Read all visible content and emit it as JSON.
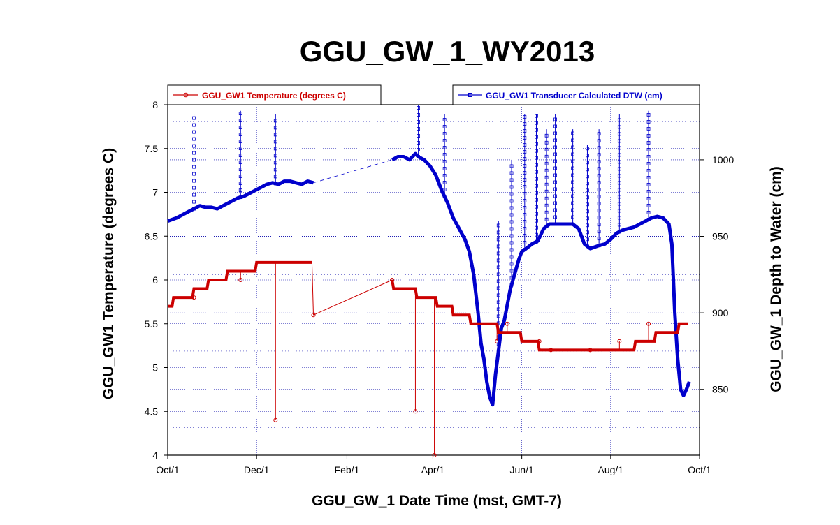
{
  "chart_data": {
    "type": "line",
    "title": "GGU_GW_1_WY2013",
    "xlabel": "GGU_GW_1 Date Time (mst, GMT-7)",
    "ylabel_left": "GGU_GW1 Temperature (degrees C)",
    "ylabel_right": "GGU_GW_1 Depth to Water (cm)",
    "x_ticks": [
      "Oct/1",
      "Dec/1",
      "Feb/1",
      "Apr/1",
      "Jun/1",
      "Aug/1",
      "Oct/1"
    ],
    "x_tick_days": [
      0,
      61,
      123,
      182,
      243,
      304,
      365
    ],
    "y_left_ticks": [
      4,
      4.5,
      5,
      5.5,
      6,
      6.5,
      7,
      7.5,
      8
    ],
    "ylim_left": [
      4,
      8
    ],
    "y_right_ticks": [
      850,
      900,
      950,
      1000
    ],
    "ylim_right": [
      807,
      1036
    ],
    "grid": true,
    "legend": [
      {
        "name": "GGU_GW1 Temperature (degrees C)",
        "position": "top-left",
        "color": "#cc0000",
        "marker": "circle"
      },
      {
        "name": "GGU_GW1 Transducer Calculated DTW (cm)",
        "position": "top-right",
        "color": "#0000cc",
        "marker": "square"
      }
    ],
    "series": [
      {
        "name": "GGU_GW1 Temperature (degrees C)",
        "axis": "left",
        "color": "#cc0000",
        "style": "step",
        "x": [
          0,
          3,
          4,
          17,
          18,
          27,
          28,
          40,
          41,
          60,
          61,
          99,
          100,
          154,
          155,
          170,
          171,
          184,
          185,
          195,
          196,
          207,
          208,
          226,
          227,
          242,
          243,
          254,
          255,
          320,
          321,
          334,
          335,
          350,
          351,
          357
        ],
        "y": [
          5.7,
          5.7,
          5.8,
          5.8,
          5.9,
          5.9,
          6.0,
          6.0,
          6.1,
          6.1,
          6.2,
          6.2,
          5.6,
          6.0,
          5.9,
          5.9,
          5.8,
          5.8,
          5.7,
          5.7,
          5.6,
          5.6,
          5.5,
          5.5,
          5.4,
          5.4,
          5.3,
          5.3,
          5.2,
          5.2,
          5.3,
          5.3,
          5.4,
          5.4,
          5.5,
          5.5
        ]
      },
      {
        "name": "GGU_GW1 Transducer Calculated DTW (cm)",
        "axis": "right",
        "color": "#0000cc",
        "style": "line",
        "x": [
          0,
          3,
          6,
          10,
          14,
          18,
          22,
          26,
          30,
          34,
          38,
          42,
          46,
          48,
          52,
          56,
          60,
          64,
          68,
          72,
          76,
          80,
          84,
          88,
          92,
          96,
          100,
          154,
          158,
          162,
          166,
          170,
          172,
          176,
          180,
          184,
          188,
          192,
          196,
          200,
          204,
          207,
          210,
          213,
          215,
          217,
          219,
          221,
          223,
          225,
          227,
          229,
          231,
          233,
          235,
          238,
          241,
          243,
          246,
          250,
          254,
          258,
          262,
          266,
          270,
          274,
          278,
          282,
          286,
          290,
          293,
          296,
          300,
          304,
          308,
          312,
          316,
          320,
          324,
          328,
          332,
          336,
          340,
          344,
          346,
          348,
          350,
          352,
          354,
          356,
          358
        ],
        "y": [
          960,
          961,
          962,
          964,
          966,
          968,
          970,
          969,
          969,
          968,
          970,
          972,
          974,
          975,
          976,
          978,
          980,
          982,
          984,
          985,
          984,
          986,
          986,
          985,
          984,
          986,
          985,
          1000,
          1002,
          1002,
          1000,
          1004,
          1002,
          1000,
          996,
          990,
          980,
          972,
          962,
          955,
          948,
          940,
          925,
          900,
          880,
          870,
          855,
          845,
          840,
          860,
          875,
          890,
          895,
          905,
          915,
          925,
          935,
          940,
          942,
          945,
          947,
          955,
          958,
          958,
          958,
          958,
          958,
          955,
          945,
          942,
          943,
          944,
          945,
          948,
          952,
          954,
          955,
          956,
          958,
          960,
          962,
          963,
          962,
          958,
          945,
          900,
          870,
          850,
          846,
          850,
          855
        ]
      }
    ],
    "temperature_drops": [
      {
        "x": 18,
        "y": 5.8
      },
      {
        "x": 50,
        "y": 6.0
      },
      {
        "x": 74,
        "y": 4.4
      },
      {
        "x": 170,
        "y": 4.5
      },
      {
        "x": 183,
        "y": 4.0
      },
      {
        "x": 226,
        "y": 5.3
      },
      {
        "x": 233,
        "y": 5.5
      },
      {
        "x": 255,
        "y": 5.3
      },
      {
        "x": 263,
        "y": 5.2
      },
      {
        "x": 290,
        "y": 5.2
      },
      {
        "x": 310,
        "y": 5.3
      },
      {
        "x": 330,
        "y": 5.5
      }
    ],
    "dtw_spikes": [
      {
        "x": 18,
        "y": 1030
      },
      {
        "x": 50,
        "y": 1032
      },
      {
        "x": 74,
        "y": 1030
      },
      {
        "x": 172,
        "y": 1036
      },
      {
        "x": 190,
        "y": 1030
      },
      {
        "x": 227,
        "y": 960
      },
      {
        "x": 236,
        "y": 1000
      },
      {
        "x": 245,
        "y": 1030
      },
      {
        "x": 253,
        "y": 1030
      },
      {
        "x": 260,
        "y": 1020
      },
      {
        "x": 266,
        "y": 1030
      },
      {
        "x": 278,
        "y": 1020
      },
      {
        "x": 288,
        "y": 1010
      },
      {
        "x": 296,
        "y": 1020
      },
      {
        "x": 310,
        "y": 1030
      },
      {
        "x": 330,
        "y": 1032
      }
    ]
  }
}
